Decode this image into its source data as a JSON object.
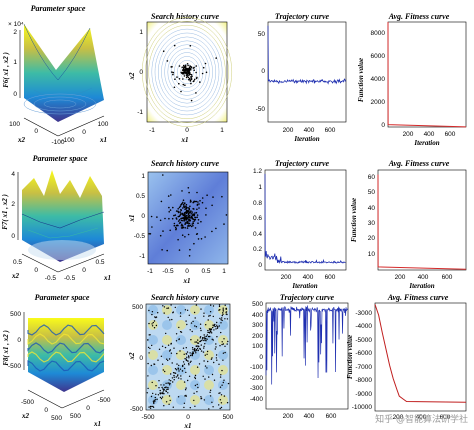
{
  "watermark": "知乎 @智能算法研学社",
  "chart_data": [
    {
      "type": "surface",
      "row": 0,
      "title": "Parameter space",
      "zlabel": "F6( x1 , x2 )",
      "xlabel": "x1",
      "ylabel": "x2",
      "x_ticks": [
        "-100",
        "0",
        "100"
      ],
      "y_ticks": [
        "100",
        "0",
        "-100"
      ],
      "z_ticks": [
        "0",
        "1",
        "2"
      ],
      "z_exponent": "× 10⁴"
    },
    {
      "type": "contour",
      "row": 0,
      "title": "Search history curve",
      "xlabel": "x1",
      "ylabel": "x2",
      "x_ticks": [
        "-1",
        "0",
        "1"
      ],
      "y_ticks": [
        "1",
        "0",
        "-1"
      ]
    },
    {
      "type": "line",
      "row": 0,
      "title": "Trajectory curve",
      "xlabel": "Iteration",
      "ylabel": "",
      "x_ticks": [
        "200",
        "400",
        "600"
      ],
      "y_ticks": [
        "50",
        "0",
        "-50"
      ],
      "xlim": [
        0,
        750
      ],
      "ylim": [
        -55,
        80
      ],
      "trajectory": [
        [
          0,
          75
        ],
        [
          4,
          0
        ],
        [
          750,
          0
        ]
      ]
    },
    {
      "type": "line",
      "row": 0,
      "title": "Avg. Fitness curve",
      "xlabel": "Iteration",
      "ylabel": "Function value",
      "x_ticks": [
        "200",
        "400",
        "600"
      ],
      "y_ticks": [
        "8000",
        "6000",
        "4000",
        "2000",
        "0"
      ],
      "xlim": [
        0,
        750
      ],
      "ylim": [
        0,
        9000
      ],
      "curve": [
        [
          0,
          9000
        ],
        [
          1,
          200
        ],
        [
          750,
          10
        ]
      ]
    },
    {
      "type": "surface",
      "row": 1,
      "title": "Parameter space",
      "zlabel": "F7( x1 , x2 )",
      "xlabel": "x1",
      "ylabel": "x2",
      "x_ticks": [
        "-0.5",
        "0",
        "0.5"
      ],
      "y_ticks": [
        "0.5",
        "0",
        "-0.5"
      ],
      "z_ticks": [
        "0",
        "2",
        "4"
      ]
    },
    {
      "type": "scatter",
      "row": 1,
      "title": "Search history curve",
      "xlabel": "x1",
      "ylabel": "x1",
      "x_ticks": [
        "-1",
        "-0.5",
        "0",
        "0.5",
        "1"
      ],
      "y_ticks": [
        "1",
        "0.5",
        "0",
        "-0.5",
        "-1"
      ]
    },
    {
      "type": "line",
      "row": 1,
      "title": "Trajectory curve",
      "xlabel": "Iteration",
      "ylabel": "",
      "x_ticks": [
        "200",
        "400",
        "600"
      ],
      "y_ticks": [
        "1.2",
        "1",
        "0.8",
        "0.6",
        "0.4",
        "0.2",
        "0"
      ],
      "xlim": [
        0,
        750
      ],
      "ylim": [
        -0.05,
        1.25
      ],
      "trajectory": [
        [
          0,
          1.2
        ],
        [
          2,
          0.1
        ],
        [
          30,
          0.12
        ],
        [
          80,
          0.08
        ],
        [
          150,
          0.05
        ],
        [
          300,
          0.04
        ],
        [
          750,
          0.03
        ]
      ]
    },
    {
      "type": "line",
      "row": 1,
      "title": "Avg. Fitness curve",
      "xlabel": "Iteration",
      "ylabel": "Function value",
      "x_ticks": [
        "200",
        "400",
        "600"
      ],
      "y_ticks": [
        "60",
        "50",
        "40",
        "30",
        "20",
        "10"
      ],
      "xlim": [
        0,
        750
      ],
      "ylim": [
        0,
        65
      ],
      "curve": [
        [
          0,
          62
        ],
        [
          1,
          2
        ],
        [
          750,
          0.5
        ]
      ]
    },
    {
      "type": "surface",
      "row": 2,
      "title": "Parameter space",
      "zlabel": "F8( x1 , x2 )",
      "xlabel": "x1",
      "ylabel": "x2",
      "x_ticks": [
        "500",
        "0",
        "-500"
      ],
      "y_ticks": [
        "-500",
        "0",
        "500"
      ],
      "z_ticks": [
        "-500",
        "0",
        "500"
      ]
    },
    {
      "type": "scatter",
      "row": 2,
      "title": "Search history curve",
      "xlabel": "x1",
      "ylabel": "x2",
      "x_ticks": [
        "-500",
        "0",
        "500"
      ],
      "y_ticks": [
        "500",
        "0",
        "-500"
      ]
    },
    {
      "type": "line",
      "row": 2,
      "title": "Trajectory curve",
      "xlabel": "Iteration",
      "ylabel": "",
      "x_ticks": [
        "200",
        "400",
        "600"
      ],
      "y_ticks": [
        "500",
        "400",
        "300",
        "200",
        "100",
        "0",
        "-100",
        "-200",
        "-300",
        "-400"
      ],
      "xlim": [
        0,
        750
      ],
      "ylim": [
        -480,
        520
      ]
    },
    {
      "type": "line",
      "row": 2,
      "title": "Avg. Fitness curve",
      "xlabel": "Iteration",
      "ylabel": "Function value",
      "x_ticks": [
        "200",
        "400",
        "600"
      ],
      "y_ticks": [
        "-3000",
        "-4000",
        "-5000",
        "-6000",
        "-7000",
        "-8000",
        "-9000",
        "-10000"
      ],
      "xlim": [
        0,
        750
      ],
      "ylim": [
        -10600,
        -2600
      ],
      "curve": [
        [
          0,
          -2700
        ],
        [
          30,
          -3500
        ],
        [
          60,
          -4800
        ],
        [
          90,
          -6000
        ],
        [
          120,
          -7200
        ],
        [
          150,
          -8200
        ],
        [
          180,
          -9000
        ],
        [
          200,
          -9500
        ],
        [
          230,
          -9700
        ],
        [
          260,
          -9900
        ],
        [
          750,
          -9950
        ]
      ]
    }
  ]
}
